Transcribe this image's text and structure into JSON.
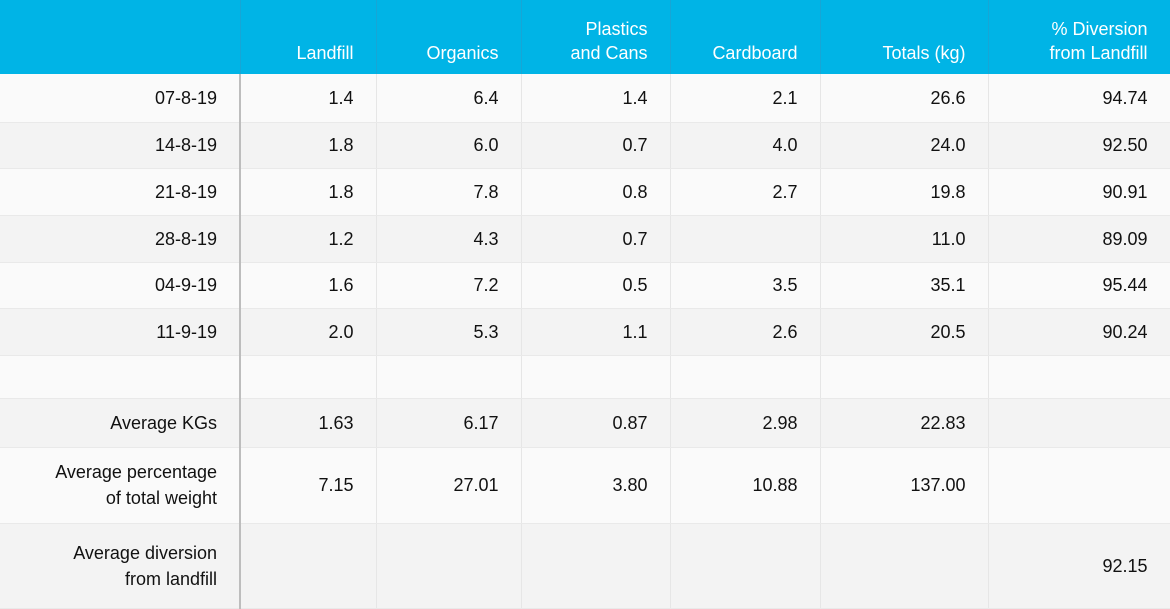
{
  "headers": [
    "",
    "Landfill",
    "Organics",
    "Plastics\nand Cans",
    "Cardboard",
    "Totals (kg)",
    "% Diversion\nfrom Landfill"
  ],
  "rows": [
    [
      "07-8-19",
      "1.4",
      "6.4",
      "1.4",
      "2.1",
      "26.6",
      "94.74"
    ],
    [
      "14-8-19",
      "1.8",
      "6.0",
      "0.7",
      "4.0",
      "24.0",
      "92.50"
    ],
    [
      "21-8-19",
      "1.8",
      "7.8",
      "0.8",
      "2.7",
      "19.8",
      "90.91"
    ],
    [
      "28-8-19",
      "1.2",
      "4.3",
      "0.7",
      "",
      "11.0",
      "89.09"
    ],
    [
      "04-9-19",
      "1.6",
      "7.2",
      "0.5",
      "3.5",
      "35.1",
      "95.44"
    ],
    [
      "11-9-19",
      "2.0",
      "5.3",
      "1.1",
      "2.6",
      "20.5",
      "90.24"
    ],
    [
      "",
      "",
      "",
      "",
      "",
      "",
      ""
    ],
    [
      "Average KGs",
      "1.63",
      "6.17",
      "0.87",
      "2.98",
      "22.83",
      ""
    ],
    [
      "Average percentage\nof total weight",
      "7.15",
      "27.01",
      "3.80",
      "10.88",
      "137.00",
      ""
    ],
    [
      "Average diversion\nfrom landfill",
      "",
      "",
      "",
      "",
      "",
      "92.15"
    ]
  ]
}
